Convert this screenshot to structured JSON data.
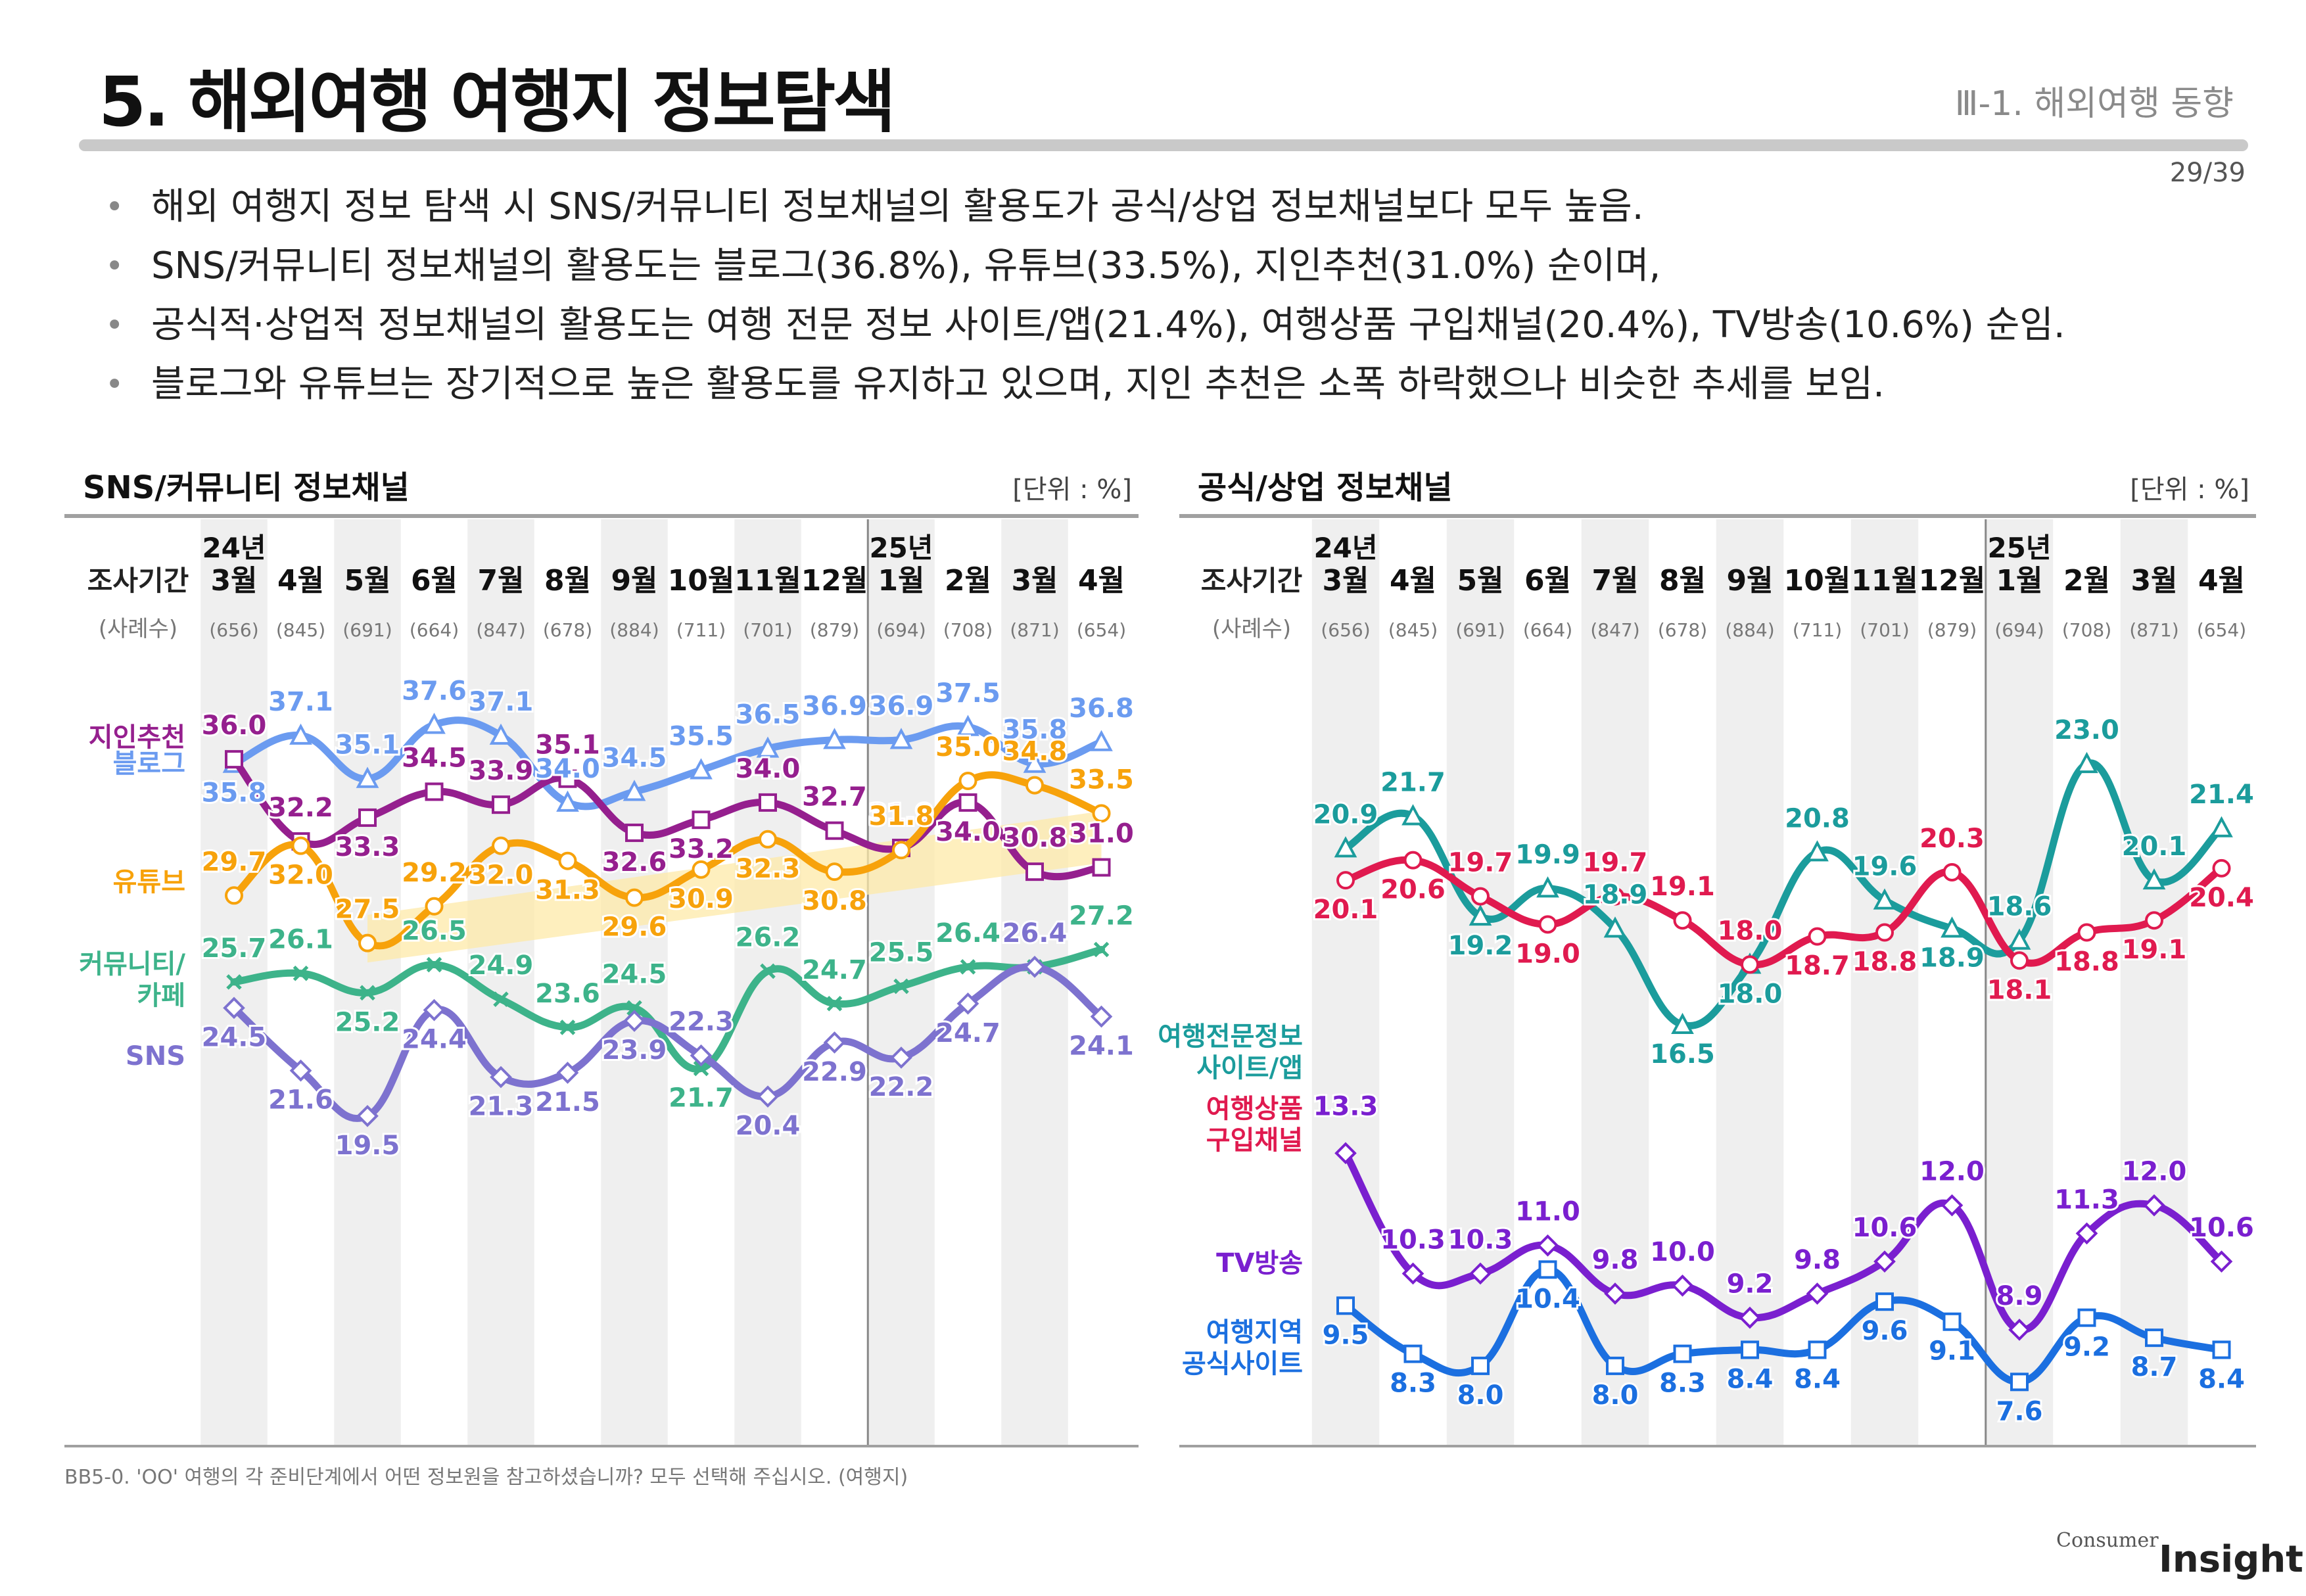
{
  "header": {
    "title": "5. 해외여행 여행지 정보탐색",
    "section": "Ⅲ-1. 해외여행 동향",
    "page": "29/39"
  },
  "bullets": [
    "해외 여행지 정보 탐색 시 SNS/커뮤니티 정보채널의 활용도가 공식/상업 정보채널보다 모두 높음.",
    "SNS/커뮤니티 정보채널의 활용도는 블로그(36.8%), 유튜브(33.5%), 지인추천(31.0%) 순이며,",
    "공식적·상업적 정보채널의 활용도는 여행 전문 정보 사이트/앱(21.4%), 여행상품 구입채널(20.4%), TV방송(10.6%) 순임.",
    "블로그와 유튜브는 장기적으로 높은 활용도를 유지하고 있으며, 지인 추천은 소폭 하락했으나 비슷한 추세를 보임."
  ],
  "footnote": "BB5-0. 'OO' 여행의 각 준비단계에서 어떤 정보원을 참고하셨습니까? 모두 선택해 주십시오. (여행지)",
  "logo": {
    "top": "Consumer",
    "bottom": "Insight"
  },
  "common": {
    "row_label_period": "조사기간",
    "row_label_n": "(사례수)",
    "unit": "[단위 : %]",
    "months": [
      "3월",
      "4월",
      "5월",
      "6월",
      "7월",
      "8월",
      "9월",
      "10월",
      "11월",
      "12월",
      "1월",
      "2월",
      "3월",
      "4월"
    ],
    "year_labels": [
      {
        "index": 0,
        "text": "24년"
      },
      {
        "index": 10,
        "text": "25년"
      }
    ],
    "n": [
      "(656)",
      "(845)",
      "(691)",
      "(664)",
      "(847)",
      "(678)",
      "(884)",
      "(711)",
      "(701)",
      "(879)",
      "(694)",
      "(708)",
      "(871)",
      "(654)"
    ]
  },
  "chart_data": [
    {
      "type": "line",
      "title": "SNS/커뮤니티 정보채널",
      "ylim": [
        17,
        39.5
      ],
      "series": [
        {
          "name": "블로그",
          "color": "#6b9bf0",
          "marker": "triangle",
          "values": [
            35.8,
            37.1,
            35.1,
            37.6,
            37.1,
            34.0,
            34.5,
            35.5,
            36.5,
            36.9,
            36.9,
            37.5,
            35.8,
            36.8
          ]
        },
        {
          "name": "지인추천",
          "color": "#951f8e",
          "marker": "square",
          "values": [
            36.0,
            32.2,
            33.3,
            34.5,
            33.9,
            35.1,
            32.6,
            33.2,
            34.0,
            32.7,
            31.9,
            34.0,
            30.8,
            31.0
          ]
        },
        {
          "name": "유튜브",
          "color": "#f7a20b",
          "marker": "circle",
          "values": [
            29.7,
            32.0,
            27.5,
            29.2,
            32.0,
            31.3,
            29.6,
            30.9,
            32.3,
            30.8,
            31.8,
            35.0,
            34.8,
            33.5
          ]
        },
        {
          "name": "커뮤니티/\n카페",
          "color": "#3db38a",
          "marker": "x",
          "values": [
            25.7,
            26.1,
            25.2,
            26.5,
            24.9,
            23.6,
            24.5,
            21.7,
            26.2,
            24.7,
            25.5,
            26.4,
            26.4,
            27.2
          ]
        },
        {
          "name": "SNS",
          "color": "#7d72cf",
          "marker": "diamond",
          "values": [
            24.5,
            21.6,
            19.5,
            24.4,
            21.3,
            21.5,
            23.9,
            22.3,
            20.4,
            22.9,
            22.2,
            24.7,
            26.4,
            24.1
          ]
        }
      ]
    },
    {
      "type": "line",
      "title": "공식/상업 정보채널",
      "ylim": [
        6,
        25
      ],
      "series": [
        {
          "name": "여행전문정보\n사이트/앱",
          "color": "#1b9c9c",
          "marker": "triangle",
          "values": [
            20.9,
            21.7,
            19.2,
            19.9,
            18.9,
            16.5,
            18.0,
            20.8,
            19.6,
            18.9,
            18.6,
            23.0,
            20.1,
            21.4
          ]
        },
        {
          "name": "여행상품\n구입채널",
          "color": "#e01a4f",
          "marker": "circle",
          "values": [
            20.1,
            20.6,
            19.7,
            19.0,
            19.7,
            19.1,
            18.0,
            18.7,
            18.8,
            20.3,
            18.1,
            18.8,
            19.1,
            20.4
          ]
        },
        {
          "name": "TV방송",
          "color": "#7a1fcf",
          "marker": "diamond",
          "values": [
            13.3,
            10.3,
            10.3,
            11.0,
            9.8,
            10.0,
            9.2,
            9.8,
            10.6,
            12.0,
            8.9,
            11.3,
            12.0,
            10.6
          ]
        },
        {
          "name": "여행지역\n공식사이트",
          "color": "#1b6fe0",
          "marker": "square",
          "values": [
            9.5,
            8.3,
            8.0,
            10.4,
            8.0,
            8.3,
            8.4,
            8.4,
            9.6,
            9.1,
            7.6,
            9.2,
            8.7,
            8.4
          ]
        }
      ]
    }
  ]
}
